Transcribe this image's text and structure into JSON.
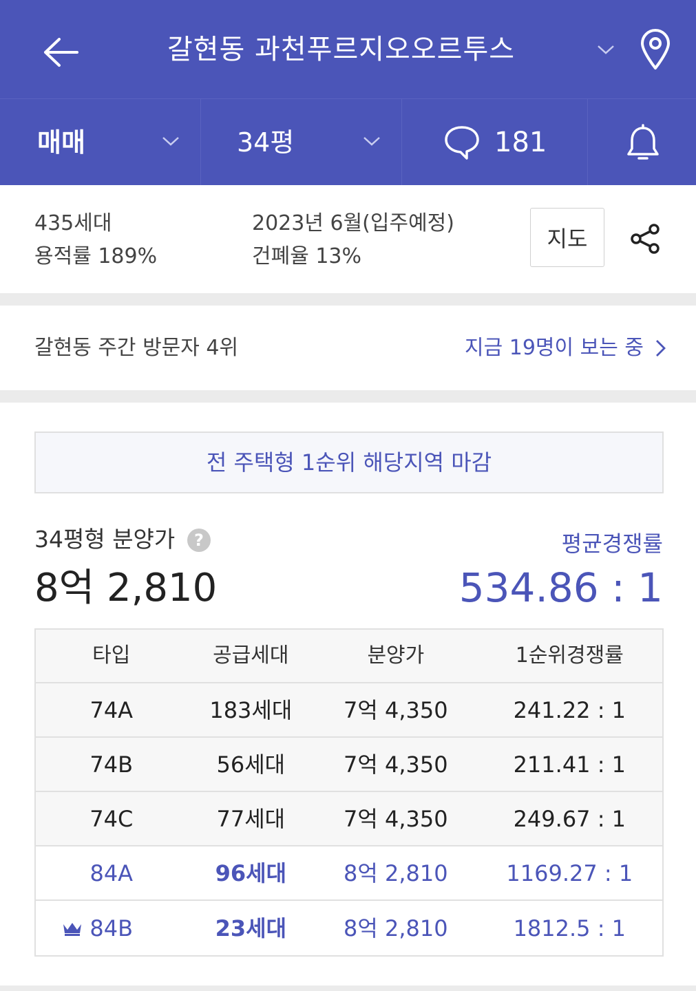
{
  "header": {
    "title": "갈현동 과천푸르지오오르투스"
  },
  "tabs": {
    "deal": "매매",
    "size": "34평",
    "chat_count": "181"
  },
  "info": {
    "households": "435세대",
    "floor_area_ratio": "용적률 189%",
    "move_in": "2023년 6월(입주예정)",
    "building_coverage": "건폐율 13%",
    "map_button": "지도"
  },
  "visitor": {
    "rank": "갈현동 주간 방문자 4위",
    "now": "지금 19명이 보는 중"
  },
  "notice": "전 주택형 1순위 해당지역 마감",
  "price": {
    "label": "34평형 분양가",
    "help": "?",
    "value": "8억 2,810",
    "avg_label": "평균경쟁률",
    "avg_value": "534.86 : 1"
  },
  "table": {
    "headers": [
      "타입",
      "공급세대",
      "분양가",
      "1순위경쟁률"
    ],
    "rows": [
      [
        "74A",
        "183세대",
        "7억 4,350",
        "241.22 : 1"
      ],
      [
        "74B",
        "56세대",
        "7억 4,350",
        "211.41 : 1"
      ],
      [
        "74C",
        "77세대",
        "7억 4,350",
        "249.67 : 1"
      ],
      [
        "84A",
        "96세대",
        "8억 2,810",
        "1169.27 : 1"
      ],
      [
        "84B",
        "23세대",
        "8억 2,810",
        "1812.5 : 1"
      ]
    ]
  },
  "colors": {
    "primary": "#4b55b8",
    "divider": "#ebebeb"
  },
  "icons": [
    "back-arrow-icon",
    "chevron-down-icon",
    "location-pin-icon",
    "chat-bubble-icon",
    "bell-icon",
    "share-icon",
    "chevron-right-icon",
    "crown-icon",
    "help-icon"
  ]
}
